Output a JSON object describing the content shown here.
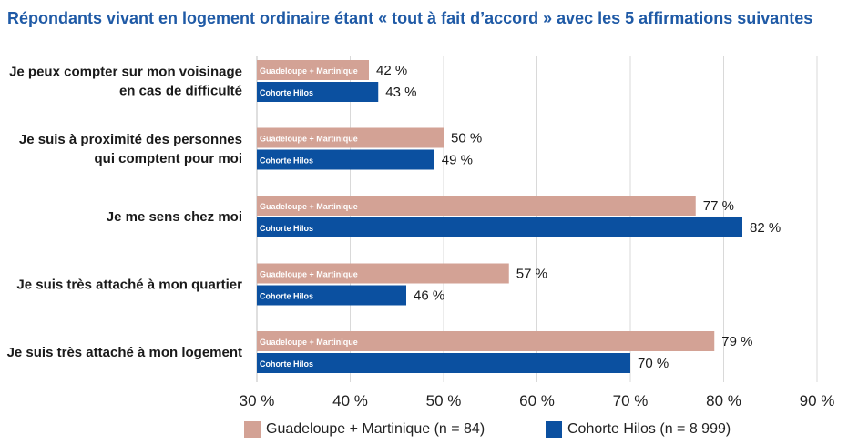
{
  "chart_data": {
    "type": "bar",
    "orientation": "horizontal",
    "title": "Répondants vivant en logement ordinaire étant « tout à fait d’accord » avec les 5 affirmations suivantes",
    "categories": [
      "Je peux compter sur mon voisinage en cas de difficulté",
      "Je suis à proximité des personnes qui comptent pour moi",
      "Je me sens chez moi",
      "Je suis très attaché à mon quartier",
      "Je suis très attaché à mon logement"
    ],
    "category_lines": [
      [
        "Je peux compter sur mon voisinage",
        "en cas de difficulté"
      ],
      [
        "Je suis à proximité des personnes",
        "qui comptent pour moi"
      ],
      [
        "Je me sens chez moi"
      ],
      [
        "Je suis très attaché à mon quartier"
      ],
      [
        "Je suis très attaché à mon logement"
      ]
    ],
    "series": [
      {
        "name": "Guadeloupe + Martinique",
        "legend": "Guadeloupe + Martinique (n = 84)",
        "bar_label": "Guadeloupe + Martinique",
        "color": "#d3a295",
        "values": [
          42,
          50,
          77,
          57,
          79
        ],
        "labels": [
          "42 %",
          "50 %",
          "77 %",
          "57 %",
          "79 %"
        ]
      },
      {
        "name": "Cohorte Hilos",
        "legend": "Cohorte Hilos (n = 8 999)",
        "bar_label": "Cohorte Hilos",
        "color": "#0b50a0",
        "values": [
          43,
          49,
          82,
          46,
          70
        ],
        "labels": [
          "43 %",
          "49 %",
          "82 %",
          "46 %",
          "70 %"
        ]
      }
    ],
    "xlim": [
      30,
      90
    ],
    "xticks": [
      30,
      40,
      50,
      60,
      70,
      80,
      90
    ],
    "xtick_labels": [
      "30 %",
      "40 %",
      "50 %",
      "60 %",
      "70 %",
      "80 %",
      "90 %"
    ],
    "xlabel": "",
    "ylabel": "",
    "grid": true,
    "legend_position": "bottom",
    "title_color": "#1f5aa6"
  }
}
